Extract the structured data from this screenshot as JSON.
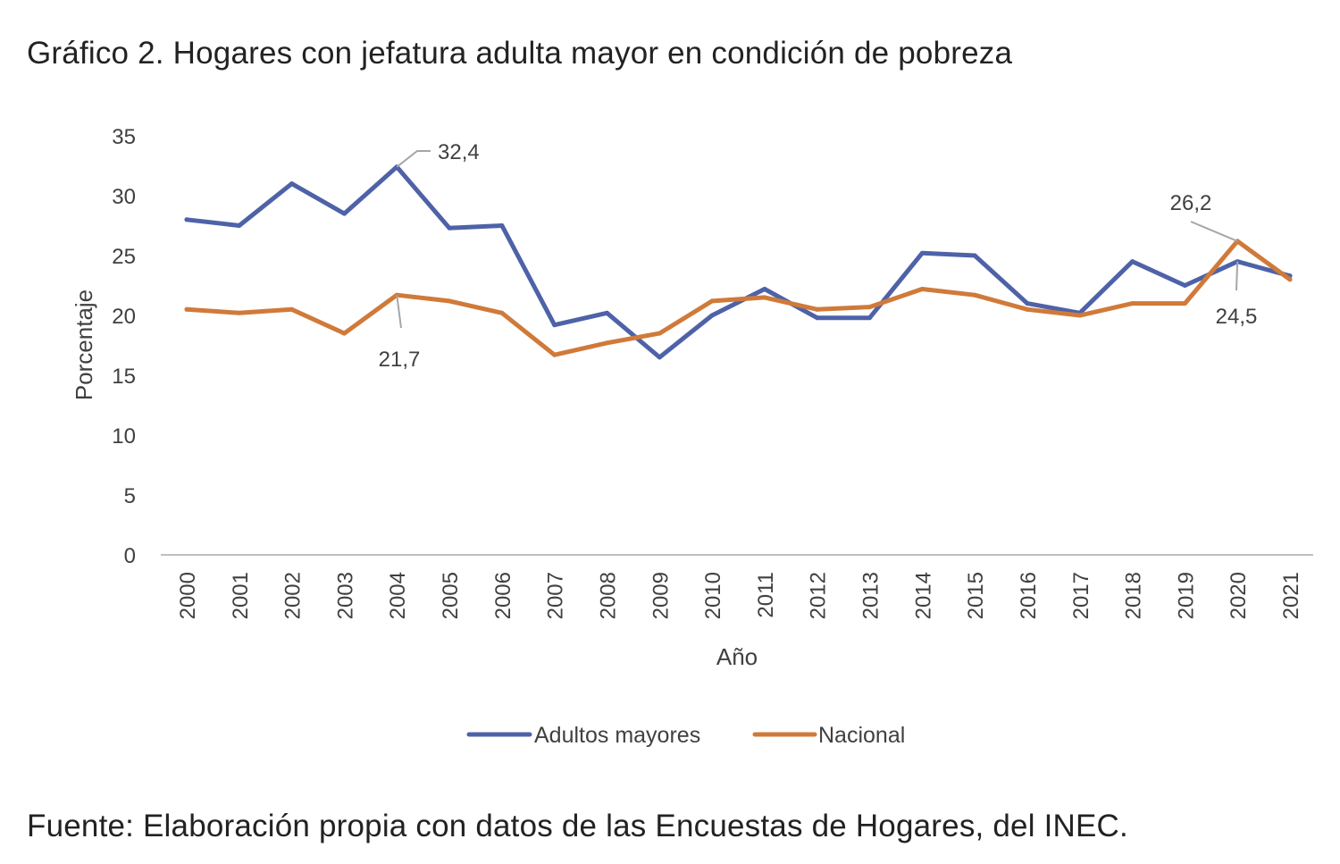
{
  "title": "Gráfico 2. Hogares con jefatura adulta mayor en condición de pobreza",
  "source": "Fuente: Elaboración propia con datos de las Encuestas de Hogares, del INEC.",
  "chart_data": {
    "type": "line",
    "xlabel": "Año",
    "ylabel": "Porcentaje",
    "ylim": [
      0,
      35
    ],
    "yticks": [
      "0",
      "5",
      "10",
      "15",
      "20",
      "25",
      "30",
      "35"
    ],
    "grid": false,
    "legend_position": "bottom",
    "categories": [
      "2000",
      "2001",
      "2002",
      "2003",
      "2004",
      "2005",
      "2006",
      "2007",
      "2008",
      "2009",
      "2010",
      "2011",
      "2012",
      "2013",
      "2014",
      "2015",
      "2016",
      "2017",
      "2018",
      "2019",
      "2020",
      "2021"
    ],
    "series": [
      {
        "name": "Adultos mayores",
        "color": "#4e62a8",
        "values": [
          28.0,
          27.5,
          31.0,
          28.5,
          32.4,
          27.3,
          27.5,
          19.2,
          20.2,
          16.5,
          20.0,
          22.2,
          19.8,
          19.8,
          25.2,
          25.0,
          21.0,
          20.2,
          24.5,
          22.5,
          24.5,
          23.3
        ]
      },
      {
        "name": "Nacional",
        "color": "#d07a3a",
        "values": [
          20.5,
          20.2,
          20.5,
          18.5,
          21.7,
          21.2,
          20.2,
          16.7,
          17.7,
          18.5,
          21.2,
          21.5,
          20.5,
          20.7,
          22.2,
          21.7,
          20.5,
          20.0,
          21.0,
          21.0,
          26.2,
          23.0
        ]
      }
    ],
    "annotations": [
      {
        "series": 0,
        "category": "2004",
        "label": "32,4"
      },
      {
        "series": 1,
        "category": "2004",
        "label": "21,7"
      },
      {
        "series": 1,
        "category": "2020",
        "label": "26,2"
      },
      {
        "series": 0,
        "category": "2020",
        "label": "24,5"
      }
    ]
  }
}
